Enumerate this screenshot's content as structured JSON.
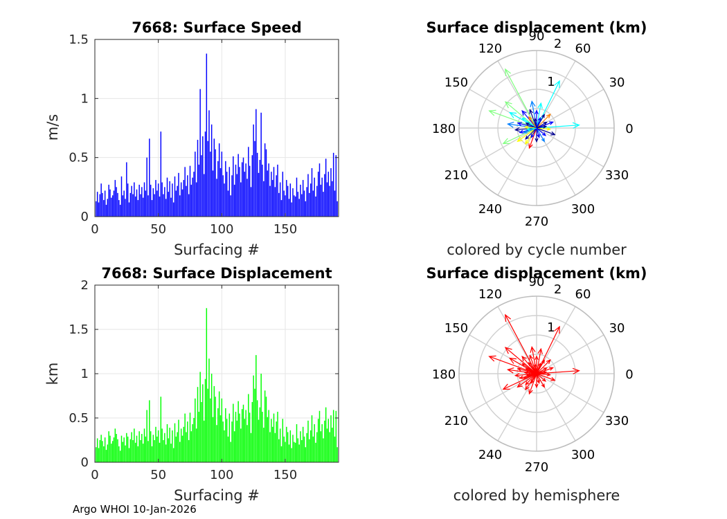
{
  "footer": "Argo WHOI 10-Jan-2026",
  "chart_data": [
    {
      "type": "bar",
      "title": "7668: Surface Speed",
      "xlabel": "Surfacing #",
      "ylabel": "m/s",
      "xlim": [
        0,
        192
      ],
      "ylim": [
        0,
        1.5
      ],
      "xticks": [
        0,
        50,
        100,
        150
      ],
      "yticks": [
        0,
        0.5,
        1,
        1.5
      ],
      "xtick_labels": [
        "0",
        "50",
        "100",
        "150"
      ],
      "ytick_labels": [
        "0",
        "0.5",
        "1",
        "1.5"
      ],
      "grid": true,
      "color": "#0000ff",
      "x": [
        1,
        2,
        3,
        4,
        5,
        6,
        7,
        8,
        9,
        10,
        11,
        12,
        13,
        14,
        15,
        16,
        17,
        18,
        19,
        20,
        21,
        22,
        23,
        24,
        25,
        26,
        27,
        28,
        29,
        30,
        31,
        32,
        33,
        34,
        35,
        36,
        37,
        38,
        39,
        40,
        41,
        42,
        43,
        44,
        45,
        46,
        47,
        48,
        49,
        50,
        51,
        52,
        53,
        54,
        55,
        56,
        57,
        58,
        59,
        60,
        61,
        62,
        63,
        64,
        65,
        66,
        67,
        68,
        69,
        70,
        71,
        72,
        73,
        74,
        75,
        76,
        77,
        78,
        79,
        80,
        81,
        82,
        83,
        84,
        85,
        86,
        87,
        88,
        89,
        90,
        91,
        92,
        93,
        94,
        95,
        96,
        97,
        98,
        99,
        100,
        101,
        102,
        103,
        104,
        105,
        106,
        107,
        108,
        109,
        110,
        111,
        112,
        113,
        114,
        115,
        116,
        117,
        118,
        119,
        120,
        121,
        122,
        123,
        124,
        125,
        126,
        127,
        128,
        129,
        130,
        131,
        132,
        133,
        134,
        135,
        136,
        137,
        138,
        139,
        140,
        141,
        142,
        143,
        144,
        145,
        146,
        147,
        148,
        149,
        150,
        151,
        152,
        153,
        154,
        155,
        156,
        157,
        158,
        159,
        160,
        161,
        162,
        163,
        164,
        165,
        166,
        167,
        168,
        169,
        170,
        171,
        172,
        173,
        174,
        175,
        176,
        177,
        178,
        179,
        180,
        181,
        182,
        183,
        184,
        185,
        186,
        187,
        188,
        189,
        190,
        191
      ],
      "values": [
        0.13,
        0.21,
        0.12,
        0.19,
        0.28,
        0.2,
        0.14,
        0.22,
        0.1,
        0.15,
        0.27,
        0.23,
        0.16,
        0.18,
        0.22,
        0.31,
        0.25,
        0.2,
        0.14,
        0.1,
        0.34,
        0.18,
        0.22,
        0.15,
        0.46,
        0.28,
        0.12,
        0.2,
        0.26,
        0.19,
        0.29,
        0.17,
        0.23,
        0.14,
        0.27,
        0.19,
        0.25,
        0.16,
        0.29,
        0.22,
        0.5,
        0.18,
        0.66,
        0.27,
        0.14,
        0.24,
        0.19,
        0.31,
        0.22,
        0.28,
        0.17,
        0.72,
        0.29,
        0.19,
        0.25,
        0.15,
        0.33,
        0.21,
        0.3,
        0.16,
        0.28,
        0.12,
        0.34,
        0.22,
        0.26,
        0.37,
        0.18,
        0.29,
        0.23,
        0.31,
        0.42,
        0.26,
        0.35,
        0.19,
        0.43,
        0.27,
        0.33,
        0.38,
        0.55,
        0.29,
        0.65,
        0.44,
        1.08,
        0.52,
        0.68,
        0.36,
        0.72,
        1.38,
        0.64,
        0.9,
        0.55,
        0.78,
        0.39,
        0.66,
        0.57,
        0.32,
        0.47,
        0.62,
        0.41,
        0.55,
        0.35,
        0.28,
        0.47,
        0.38,
        0.22,
        0.42,
        0.18,
        0.35,
        0.51,
        0.27,
        0.44,
        0.36,
        0.53,
        0.42,
        0.29,
        0.46,
        0.5,
        0.38,
        0.45,
        0.32,
        0.59,
        0.43,
        0.25,
        0.52,
        0.78,
        0.64,
        0.91,
        0.54,
        0.37,
        0.48,
        0.88,
        0.44,
        0.3,
        0.62,
        0.57,
        0.39,
        0.45,
        0.26,
        0.38,
        0.31,
        0.42,
        0.25,
        0.35,
        0.44,
        0.2,
        0.29,
        0.14,
        0.38,
        0.22,
        0.18,
        0.31,
        0.26,
        0.15,
        0.28,
        0.12,
        0.24,
        0.18,
        0.17,
        0.33,
        0.21,
        0.15,
        0.27,
        0.19,
        0.31,
        0.22,
        0.13,
        0.25,
        0.36,
        0.2,
        0.28,
        0.41,
        0.22,
        0.33,
        0.17,
        0.26,
        0.38,
        0.45,
        0.27,
        0.33,
        0.21,
        0.36,
        0.49,
        0.29,
        0.38,
        0.26,
        0.41,
        0.3,
        0.54,
        0.22,
        0.52,
        0.13
      ]
    },
    {
      "type": "bar",
      "title": "7668: Surface Displacement",
      "xlabel": "Surfacing #",
      "ylabel": "km",
      "xlim": [
        0,
        192
      ],
      "ylim": [
        0,
        2
      ],
      "xticks": [
        0,
        50,
        100,
        150
      ],
      "yticks": [
        0,
        0.5,
        1,
        1.5,
        2
      ],
      "xtick_labels": [
        "0",
        "50",
        "100",
        "150"
      ],
      "ytick_labels": [
        "0",
        "0.5",
        "1",
        "1.5",
        "2"
      ],
      "grid": true,
      "color": "#00ff00",
      "x": [
        1,
        2,
        3,
        4,
        5,
        6,
        7,
        8,
        9,
        10,
        11,
        12,
        13,
        14,
        15,
        16,
        17,
        18,
        19,
        20,
        21,
        22,
        23,
        24,
        25,
        26,
        27,
        28,
        29,
        30,
        31,
        32,
        33,
        34,
        35,
        36,
        37,
        38,
        39,
        40,
        41,
        42,
        43,
        44,
        45,
        46,
        47,
        48,
        49,
        50,
        51,
        52,
        53,
        54,
        55,
        56,
        57,
        58,
        59,
        60,
        61,
        62,
        63,
        64,
        65,
        66,
        67,
        68,
        69,
        70,
        71,
        72,
        73,
        74,
        75,
        76,
        77,
        78,
        79,
        80,
        81,
        82,
        83,
        84,
        85,
        86,
        87,
        88,
        89,
        90,
        91,
        92,
        93,
        94,
        95,
        96,
        97,
        98,
        99,
        100,
        101,
        102,
        103,
        104,
        105,
        106,
        107,
        108,
        109,
        110,
        111,
        112,
        113,
        114,
        115,
        116,
        117,
        118,
        119,
        120,
        121,
        122,
        123,
        124,
        125,
        126,
        127,
        128,
        129,
        130,
        131,
        132,
        133,
        134,
        135,
        136,
        137,
        138,
        139,
        140,
        141,
        142,
        143,
        144,
        145,
        146,
        147,
        148,
        149,
        150,
        151,
        152,
        153,
        154,
        155,
        156,
        157,
        158,
        159,
        160,
        161,
        162,
        163,
        164,
        165,
        166,
        167,
        168,
        169,
        170,
        171,
        172,
        173,
        174,
        175,
        176,
        177,
        178,
        179,
        180,
        181,
        182,
        183,
        184,
        185,
        186,
        187,
        188,
        189,
        190,
        191
      ],
      "values": [
        0.17,
        0.27,
        0.16,
        0.25,
        0.31,
        0.24,
        0.18,
        0.28,
        0.14,
        0.2,
        0.35,
        0.3,
        0.21,
        0.24,
        0.28,
        0.38,
        0.32,
        0.26,
        0.18,
        0.13,
        0.3,
        0.23,
        0.28,
        0.19,
        0.33,
        0.29,
        0.16,
        0.26,
        0.34,
        0.25,
        0.38,
        0.22,
        0.3,
        0.18,
        0.35,
        0.25,
        0.32,
        0.21,
        0.38,
        0.29,
        0.59,
        0.24,
        0.7,
        0.35,
        0.18,
        0.31,
        0.25,
        0.4,
        0.29,
        0.36,
        0.22,
        0.74,
        0.38,
        0.25,
        0.33,
        0.2,
        0.43,
        0.27,
        0.39,
        0.21,
        0.36,
        0.16,
        0.44,
        0.29,
        0.34,
        0.48,
        0.23,
        0.38,
        0.3,
        0.4,
        0.55,
        0.34,
        0.46,
        0.25,
        0.56,
        0.35,
        0.43,
        0.5,
        0.72,
        0.38,
        0.85,
        0.57,
        1.02,
        0.68,
        0.88,
        0.47,
        0.94,
        1.74,
        0.83,
        1.17,
        0.72,
        1.0,
        0.51,
        0.86,
        0.74,
        0.42,
        0.61,
        0.8,
        0.53,
        0.72,
        0.46,
        0.36,
        0.61,
        0.49,
        0.29,
        0.55,
        0.23,
        0.46,
        0.66,
        0.35,
        0.57,
        0.47,
        0.69,
        0.55,
        0.38,
        0.6,
        0.65,
        0.49,
        0.59,
        0.42,
        0.77,
        0.56,
        0.33,
        0.68,
        0.98,
        0.83,
        1.21,
        0.7,
        0.48,
        0.62,
        1.0,
        0.57,
        0.39,
        0.81,
        0.74,
        0.51,
        0.59,
        0.34,
        0.49,
        0.4,
        0.55,
        0.33,
        0.46,
        0.57,
        0.26,
        0.38,
        0.18,
        0.49,
        0.29,
        0.23,
        0.4,
        0.34,
        0.2,
        0.36,
        0.16,
        0.31,
        0.23,
        0.22,
        0.43,
        0.27,
        0.2,
        0.35,
        0.25,
        0.4,
        0.29,
        0.17,
        0.33,
        0.47,
        0.26,
        0.36,
        0.53,
        0.29,
        0.43,
        0.22,
        0.34,
        0.49,
        0.58,
        0.35,
        0.43,
        0.27,
        0.47,
        0.62,
        0.38,
        0.49,
        0.34,
        0.53,
        0.39,
        0.59,
        0.29,
        0.58,
        0.17
      ]
    },
    {
      "type": "polar-compass",
      "title": "Surface displacement (km)",
      "caption": "colored by cycle number",
      "rmax": 2,
      "r_tick_labels": [
        "1",
        "2"
      ],
      "angle_labels": [
        "0",
        "30",
        "60",
        "90",
        "120",
        "150",
        "180",
        "210",
        "240",
        "270",
        "300",
        "330"
      ],
      "colormap": [
        "#00008f",
        "#0000ff",
        "#0080ff",
        "#00ffff",
        "#80ff80",
        "#ffff00",
        "#ff8000",
        "#ff0000"
      ],
      "vectors": [
        {
          "angle": 118,
          "mag": 1.72,
          "color": "#80ff80"
        },
        {
          "angle": 64,
          "mag": 1.35,
          "color": "#00ffff"
        },
        {
          "angle": 4,
          "mag": 1.1,
          "color": "#00ffff"
        },
        {
          "angle": 140,
          "mag": 1.05,
          "color": "#80ff80"
        },
        {
          "angle": 160,
          "mag": 1.3,
          "color": "#80ff80"
        },
        {
          "angle": 205,
          "mag": 0.95,
          "color": "#80ff80"
        },
        {
          "angle": 150,
          "mag": 0.8,
          "color": "#00ffff"
        },
        {
          "angle": 172,
          "mag": 0.75,
          "color": "#0080ff"
        },
        {
          "angle": 100,
          "mag": 0.7,
          "color": "#0080ff"
        },
        {
          "angle": 80,
          "mag": 0.65,
          "color": "#00ffff"
        },
        {
          "angle": 215,
          "mag": 0.6,
          "color": "#ffff00"
        },
        {
          "angle": 185,
          "mag": 0.55,
          "color": "#00008f"
        },
        {
          "angle": 130,
          "mag": 0.58,
          "color": "#0000ff"
        },
        {
          "angle": 45,
          "mag": 0.5,
          "color": "#ff8000"
        },
        {
          "angle": 250,
          "mag": 0.55,
          "color": "#ff0000"
        },
        {
          "angle": 235,
          "mag": 0.5,
          "color": "#ffff00"
        },
        {
          "angle": 20,
          "mag": 0.45,
          "color": "#0000ff"
        },
        {
          "angle": 340,
          "mag": 0.5,
          "color": "#00008f"
        },
        {
          "angle": 300,
          "mag": 0.4,
          "color": "#0080ff"
        },
        {
          "angle": 195,
          "mag": 0.45,
          "color": "#0000ff"
        },
        {
          "angle": 110,
          "mag": 0.5,
          "color": "#00008f"
        },
        {
          "angle": 165,
          "mag": 0.5,
          "color": "#0000ff"
        },
        {
          "angle": 90,
          "mag": 0.45,
          "color": "#0000ff"
        },
        {
          "angle": 270,
          "mag": 0.35,
          "color": "#00008f"
        },
        {
          "angle": 355,
          "mag": 0.35,
          "color": "#ffff00"
        },
        {
          "angle": 60,
          "mag": 0.4,
          "color": "#00008f"
        },
        {
          "angle": 145,
          "mag": 0.45,
          "color": "#00ffff"
        },
        {
          "angle": 225,
          "mag": 0.4,
          "color": "#00008f"
        },
        {
          "angle": 200,
          "mag": 0.35,
          "color": "#0080ff"
        },
        {
          "angle": 30,
          "mag": 0.3,
          "color": "#00008f"
        },
        {
          "angle": 320,
          "mag": 0.3,
          "color": "#0000ff"
        },
        {
          "angle": 175,
          "mag": 0.3,
          "color": "#ffff00"
        },
        {
          "angle": 125,
          "mag": 0.35,
          "color": "#ff8000"
        },
        {
          "angle": 10,
          "mag": 0.25,
          "color": "#00008f"
        },
        {
          "angle": 285,
          "mag": 0.25,
          "color": "#0000ff"
        },
        {
          "angle": 70,
          "mag": 0.28,
          "color": "#0000ff"
        },
        {
          "angle": 155,
          "mag": 0.3,
          "color": "#00008f"
        },
        {
          "angle": 240,
          "mag": 0.28,
          "color": "#0000ff"
        },
        {
          "angle": 190,
          "mag": 0.25,
          "color": "#00ffff"
        },
        {
          "angle": 100,
          "mag": 0.25,
          "color": "#00008f"
        }
      ]
    },
    {
      "type": "polar-compass",
      "title": "Surface displacement (km)",
      "caption": "colored by hemisphere",
      "rmax": 2,
      "r_tick_labels": [
        "1",
        "2"
      ],
      "angle_labels": [
        "0",
        "30",
        "60",
        "90",
        "120",
        "150",
        "180",
        "210",
        "240",
        "270",
        "300",
        "330"
      ],
      "color": "#ff0000",
      "vectors": [
        {
          "angle": 118,
          "mag": 1.72
        },
        {
          "angle": 64,
          "mag": 1.35
        },
        {
          "angle": 4,
          "mag": 1.1
        },
        {
          "angle": 140,
          "mag": 1.05
        },
        {
          "angle": 160,
          "mag": 1.3
        },
        {
          "angle": 205,
          "mag": 0.95
        },
        {
          "angle": 150,
          "mag": 0.8
        },
        {
          "angle": 172,
          "mag": 0.75
        },
        {
          "angle": 100,
          "mag": 0.7
        },
        {
          "angle": 80,
          "mag": 0.65
        },
        {
          "angle": 215,
          "mag": 0.6
        },
        {
          "angle": 185,
          "mag": 0.55
        },
        {
          "angle": 130,
          "mag": 0.58
        },
        {
          "angle": 45,
          "mag": 0.5
        },
        {
          "angle": 250,
          "mag": 0.55
        },
        {
          "angle": 235,
          "mag": 0.5
        },
        {
          "angle": 20,
          "mag": 0.45
        },
        {
          "angle": 340,
          "mag": 0.5
        },
        {
          "angle": 300,
          "mag": 0.4
        },
        {
          "angle": 195,
          "mag": 0.45
        },
        {
          "angle": 110,
          "mag": 0.5
        },
        {
          "angle": 165,
          "mag": 0.5
        },
        {
          "angle": 90,
          "mag": 0.45
        },
        {
          "angle": 270,
          "mag": 0.35
        },
        {
          "angle": 355,
          "mag": 0.35
        },
        {
          "angle": 60,
          "mag": 0.4
        },
        {
          "angle": 145,
          "mag": 0.45
        },
        {
          "angle": 225,
          "mag": 0.4
        },
        {
          "angle": 200,
          "mag": 0.35
        },
        {
          "angle": 30,
          "mag": 0.3
        },
        {
          "angle": 320,
          "mag": 0.3
        },
        {
          "angle": 175,
          "mag": 0.3
        },
        {
          "angle": 125,
          "mag": 0.35
        },
        {
          "angle": 10,
          "mag": 0.25
        },
        {
          "angle": 285,
          "mag": 0.25
        },
        {
          "angle": 70,
          "mag": 0.28
        },
        {
          "angle": 155,
          "mag": 0.3
        },
        {
          "angle": 240,
          "mag": 0.28
        },
        {
          "angle": 190,
          "mag": 0.25
        },
        {
          "angle": 100,
          "mag": 0.25
        }
      ]
    }
  ]
}
